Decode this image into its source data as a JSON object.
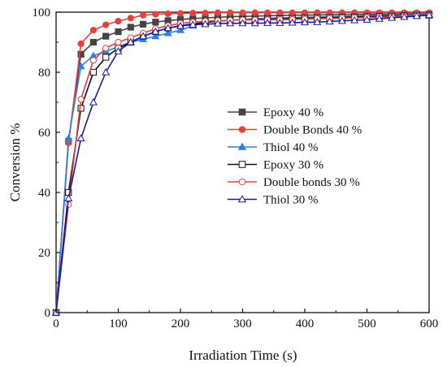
{
  "chart_data": {
    "type": "line",
    "xlabel": "Irradiation Time (s)",
    "ylabel": "Conversion %",
    "xlim": [
      0,
      600
    ],
    "ylim": [
      0,
      100
    ],
    "xticks": [
      0,
      100,
      200,
      300,
      400,
      500,
      600
    ],
    "yticks": [
      0,
      20,
      40,
      60,
      80,
      100
    ],
    "grid": false,
    "legend_position": "center-right",
    "series": [
      {
        "name": "Epoxy 40 %",
        "color": "#444444",
        "marker": "square",
        "filled": true,
        "x": [
          0,
          20,
          40,
          60,
          80,
          100,
          120,
          140,
          160,
          180,
          200,
          220,
          240,
          260,
          280,
          300,
          320,
          340,
          360,
          380,
          400,
          420,
          440,
          460,
          480,
          500,
          520,
          540,
          560,
          580,
          600
        ],
        "y": [
          0,
          57,
          86,
          90,
          92,
          93.5,
          95,
          96,
          96.7,
          97.2,
          97.6,
          97.9,
          98.1,
          98.3,
          98.5,
          98.6,
          98.7,
          98.8,
          98.9,
          99,
          99,
          99.1,
          99.1,
          99.2,
          99.2,
          99.3,
          99.3,
          99.3,
          99.4,
          99.4,
          99.4
        ]
      },
      {
        "name": "Double Bonds 40 %",
        "color": "#e8403a",
        "marker": "circle",
        "filled": true,
        "x": [
          0,
          20,
          40,
          60,
          80,
          100,
          120,
          140,
          160,
          180,
          200,
          220,
          240,
          260,
          280,
          300,
          320,
          340,
          360,
          380,
          400,
          420,
          440,
          460,
          480,
          500,
          520,
          540,
          560,
          580,
          600
        ],
        "y": [
          0,
          56.5,
          89.5,
          94,
          95.8,
          97,
          98,
          99,
          99.3,
          99.5,
          99.6,
          99.7,
          99.7,
          99.8,
          99.8,
          99.8,
          99.8,
          99.8,
          99.8,
          99.8,
          99.8,
          99.8,
          99.8,
          99.8,
          99.8,
          99.8,
          99.8,
          99.8,
          99.8,
          99.8,
          99.8
        ]
      },
      {
        "name": "Thiol 40 %",
        "color": "#2f7fe0",
        "marker": "triangle",
        "filled": true,
        "x": [
          0,
          20,
          40,
          60,
          80,
          100,
          120,
          140,
          160,
          180,
          200,
          220,
          240,
          260,
          280,
          300,
          320,
          340,
          360,
          380,
          400,
          420,
          440,
          460,
          480,
          500,
          520,
          540,
          560,
          580,
          600
        ],
        "y": [
          0,
          58,
          82,
          85.5,
          87,
          88.5,
          90,
          91,
          92,
          93,
          94,
          95.5,
          96.5,
          97,
          97.3,
          97.6,
          97.8,
          98,
          98.1,
          98.2,
          98.3,
          98.4,
          98.5,
          98.6,
          98.7,
          98.8,
          98.9,
          99,
          99.1,
          99.2,
          99.3
        ]
      },
      {
        "name": "Epoxy 30 %",
        "color": "#111111",
        "marker": "square",
        "filled": false,
        "x": [
          0,
          20,
          40,
          60,
          80,
          100,
          120,
          140,
          160,
          180,
          200,
          220,
          240,
          260,
          280,
          300,
          320,
          340,
          360,
          380,
          400,
          420,
          440,
          460,
          480,
          500,
          520,
          540,
          560,
          580,
          600
        ],
        "y": [
          0,
          40,
          68,
          80,
          85,
          88,
          90,
          92,
          93.5,
          94.7,
          95.5,
          96.1,
          96.6,
          97,
          97.3,
          97.5,
          97.6,
          97.7,
          97.8,
          97.9,
          98,
          98.1,
          98.2,
          98.3,
          98.4,
          98.5,
          98.6,
          98.7,
          98.8,
          98.9,
          99
        ]
      },
      {
        "name": "Double bonds 30 %",
        "color": "#e8403a",
        "marker": "circle",
        "filled": false,
        "x": [
          0,
          20,
          40,
          60,
          80,
          100,
          120,
          140,
          160,
          180,
          200,
          220,
          240,
          260,
          280,
          300,
          320,
          340,
          360,
          380,
          400,
          420,
          440,
          460,
          480,
          500,
          520,
          540,
          560,
          580,
          600
        ],
        "y": [
          0,
          36,
          71,
          84,
          88,
          90,
          91.5,
          93,
          94.5,
          95.5,
          96.3,
          96.7,
          97,
          97.2,
          97.3,
          97.4,
          97.4,
          97.5,
          97.5,
          97.6,
          97.7,
          97.8,
          97.9,
          98,
          98.1,
          98.2,
          98.3,
          98.5,
          98.7,
          98.9,
          99
        ]
      },
      {
        "name": "Thiol 30 %",
        "color": "#1a1aa0",
        "marker": "triangle",
        "filled": false,
        "x": [
          0,
          20,
          40,
          60,
          80,
          100,
          120,
          140,
          160,
          180,
          200,
          220,
          240,
          260,
          280,
          300,
          320,
          340,
          360,
          380,
          400,
          420,
          440,
          460,
          480,
          500,
          520,
          540,
          560,
          580,
          600
        ],
        "y": [
          0,
          38,
          58,
          70,
          80,
          87,
          90,
          92,
          93.5,
          94.7,
          95.4,
          95.8,
          96,
          96.2,
          96.3,
          96.3,
          96.3,
          96.4,
          96.4,
          96.5,
          96.6,
          96.7,
          96.9,
          97.1,
          97.3,
          97.5,
          97.8,
          98.1,
          98.4,
          98.7,
          99
        ]
      }
    ]
  }
}
